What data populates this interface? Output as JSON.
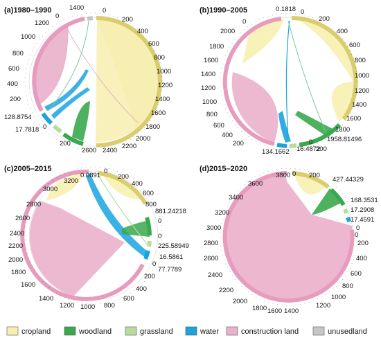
{
  "panels": [
    {
      "id": "a",
      "title": "(a)1980–1990",
      "annotations": [
        "1400",
        "128.8754",
        "17.7818",
        "2600"
      ],
      "scale_labels_left": [
        "1200",
        "1000",
        "800",
        "600",
        "400",
        "200",
        "0"
      ],
      "scale_labels_right": [
        "0",
        "200",
        "400",
        "600",
        "800",
        "1000",
        "1200",
        "1400",
        "1600",
        "1800",
        "2000",
        "2200",
        "2400"
      ],
      "scale_labels_bottom": [
        "200",
        "0"
      ]
    },
    {
      "id": "b",
      "title": "(b)1990–2005",
      "annotations": [
        "0.1818",
        "1958.81496",
        "134.1662",
        "16.4872"
      ],
      "scale_labels_left": [
        "2000",
        "1800",
        "1600",
        "1400",
        "1200",
        "1000",
        "800",
        "600",
        "400",
        "200",
        "0"
      ],
      "scale_labels_right": [
        "0",
        "200",
        "400",
        "600",
        "800",
        "1000",
        "1200",
        "1400",
        "1600",
        "1800"
      ],
      "scale_labels_bottom": [
        "0",
        "200"
      ]
    },
    {
      "id": "c",
      "title": "(c)2005–2015",
      "annotations": [
        "0.0891",
        "881.24218",
        "225.58949",
        "16.5861",
        "77.7789"
      ],
      "scale_labels_left": [
        "3200",
        "3000",
        "2800",
        "2600",
        "2400",
        "2200",
        "2000",
        "1800",
        "1600",
        "1400",
        "1200",
        "1000",
        "800",
        "600",
        "400",
        "200"
      ],
      "scale_labels_right": [
        "0",
        "200",
        "400",
        "600",
        "800",
        "0",
        "0"
      ],
      "scale_labels_bottom": [
        "0"
      ]
    },
    {
      "id": "d",
      "title": "(d)2015–2020",
      "annotations": [
        "0",
        "427.44329",
        "168.3531",
        "17.2908",
        "17.4591",
        "0"
      ],
      "scale_labels_left": [
        "3800",
        "3600",
        "3400",
        "3200",
        "3000",
        "2800",
        "2600",
        "2400",
        "2200",
        "2000",
        "1800",
        "1600",
        "1400"
      ],
      "scale_labels_right": [
        "200",
        "0",
        "200",
        "400",
        "600",
        "800",
        "1000",
        "1200"
      ],
      "scale_labels_bottom": []
    }
  ],
  "legend": [
    {
      "label": "cropland",
      "color": "#f7efb0"
    },
    {
      "label": "woodland",
      "color": "#3aa84f"
    },
    {
      "label": "grassland",
      "color": "#b8dca0"
    },
    {
      "label": "water",
      "color": "#19a3e0"
    },
    {
      "label": "construction land",
      "color": "#ebb1cc"
    },
    {
      "label": "unusedland",
      "color": "#c6c6c6"
    }
  ]
}
